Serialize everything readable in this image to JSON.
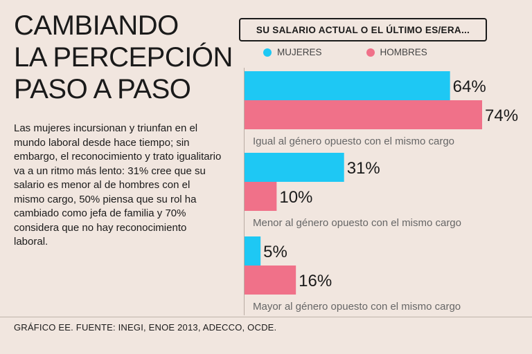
{
  "title": {
    "line1": "CAMBIANDO",
    "line2": "LA PERCEPCIÓN",
    "line3": "PASO A PASO"
  },
  "body_text": "Las mujeres incursionan y triunfan en el mundo laboral desde hace tiempo; sin embargo, el reconocimiento y trato igualitario va a un ritmo más lento: 31% cree que su salario es menor al de hombres con el mismo cargo, 50% piensa que su rol ha cambiado como jefa de familia y 70% considera que no hay reconocimiento laboral.",
  "footer": "GRÁFICO EE. FUENTE: INEGI, ENOE 2013, ADECCO, OCDE.",
  "colors": {
    "mujeres": "#1ec8f4",
    "hombres": "#f07189",
    "background": "#f1e6df"
  },
  "chart_data": {
    "type": "bar",
    "orientation": "horizontal",
    "title": "SU SALARIO ACTUAL O EL ÚLTIMO ES/ERA...",
    "categories": [
      "Igual al género opuesto con el mismo cargo",
      "Menor al género opuesto con el mismo cargo",
      "Mayor al género opuesto con el mismo cargo"
    ],
    "series": [
      {
        "name": "MUJERES",
        "values": [
          64,
          31,
          5
        ],
        "labels": [
          "64%",
          "31%",
          "5%"
        ]
      },
      {
        "name": "HOMBRES",
        "values": [
          74,
          10,
          16
        ],
        "labels": [
          "74%",
          "10%",
          "16%"
        ]
      }
    ],
    "xlim": [
      0,
      100
    ],
    "unit": "%",
    "legend_position": "top"
  }
}
